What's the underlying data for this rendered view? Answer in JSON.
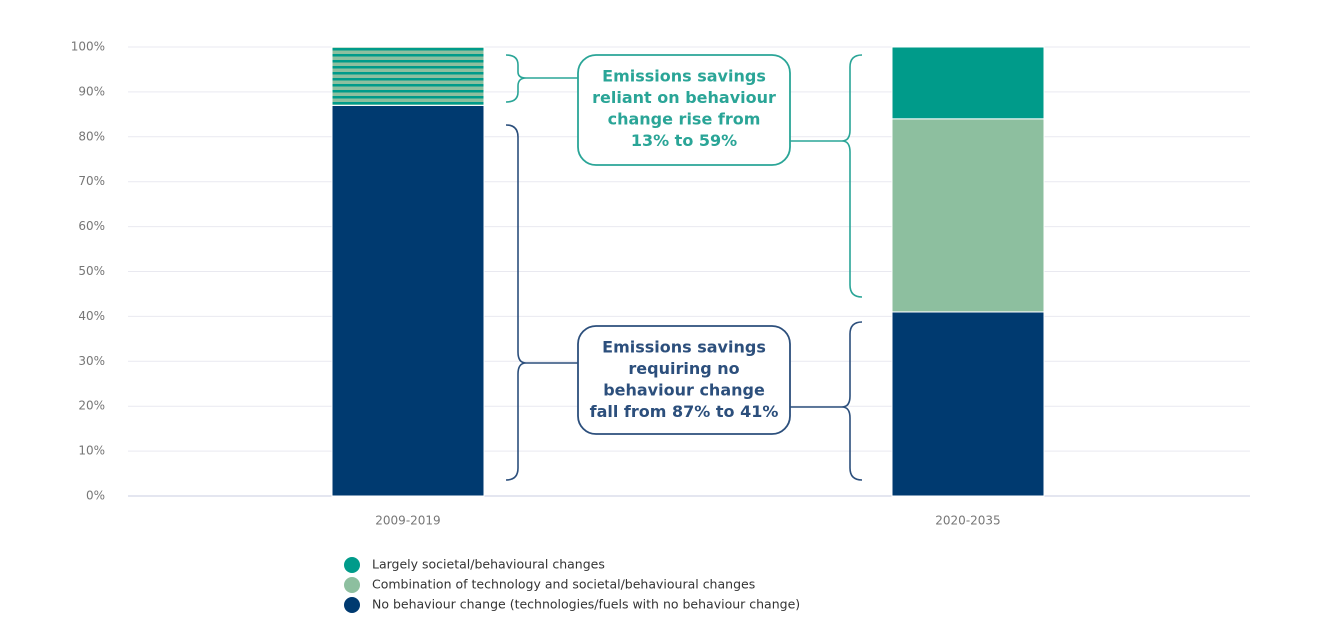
{
  "chart_data": {
    "type": "stacked_bar",
    "categories": [
      "2009-2019",
      "2020-2035"
    ],
    "series": [
      {
        "name": "Largely societal/behavioural changes",
        "color": "#009b8a",
        "values": [
          13,
          16
        ]
      },
      {
        "name": "Combination of technology and societal/behavioural changes",
        "color": "#8dbf9f",
        "values": [
          null,
          43
        ]
      },
      {
        "name": "No behaviour change (technologies/fuels with no behaviour change)",
        "color": "#003a70",
        "values": [
          87,
          41
        ]
      }
    ],
    "ylim": [
      0,
      100
    ],
    "yticks": [
      {
        "value": 0,
        "label": "0%"
      },
      {
        "value": 10,
        "label": "10%"
      },
      {
        "value": 20,
        "label": "20%"
      },
      {
        "value": 30,
        "label": "30%"
      },
      {
        "value": 40,
        "label": "40%"
      },
      {
        "value": 50,
        "label": "50%"
      },
      {
        "value": 60,
        "label": "60%"
      },
      {
        "value": 70,
        "label": "70%"
      },
      {
        "value": 80,
        "label": "80%"
      },
      {
        "value": 90,
        "label": "90%"
      },
      {
        "value": 100,
        "label": "100%"
      }
    ],
    "grid": true,
    "annotations": [
      {
        "lines": [
          "Emissions savings",
          "reliant on behaviour",
          "change rise from",
          "13% to 59%"
        ],
        "color": "#2aa597"
      },
      {
        "lines": [
          "Emissions savings",
          "requiring no",
          "behaviour change",
          "fall from 87% to 41%"
        ],
        "color": "#2c4f7c"
      }
    ]
  }
}
